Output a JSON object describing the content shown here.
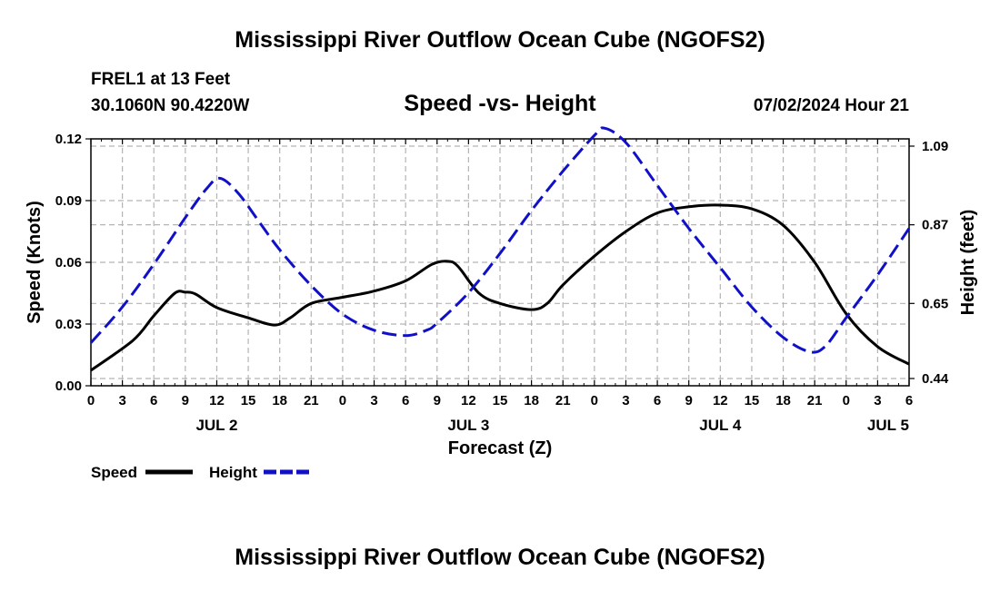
{
  "header": {
    "title": "Mississippi River Outflow Ocean Cube (NGOFS2)",
    "station": "FREL1 at 13 Feet",
    "coords": "30.1060N  90.4220W",
    "subtitle": "Speed -vs- Height",
    "timestamp": "07/02/2024 Hour 21"
  },
  "footer": {
    "title": "Mississippi River Outflow Ocean Cube (NGOFS2)"
  },
  "colors": {
    "speed": "#000000",
    "height": "#1010c8",
    "grid": "#b4b4b4"
  },
  "chart_data": {
    "type": "line",
    "xlabel": "Forecast (Z)",
    "ylabel": "Speed (Knots)",
    "y2label": "Height (feet)",
    "xlim": [
      0,
      78
    ],
    "ylim": [
      0,
      0.12
    ],
    "y2lim": [
      0.44,
      1.09
    ],
    "x_ticks": [
      0,
      3,
      6,
      9,
      12,
      15,
      18,
      21,
      24,
      27,
      30,
      33,
      36,
      39,
      42,
      45,
      48,
      51,
      54,
      57,
      60,
      63,
      66,
      69,
      72,
      75,
      78
    ],
    "x_tick_labels": [
      "0",
      "3",
      "6",
      "9",
      "12",
      "15",
      "18",
      "21",
      "0",
      "3",
      "6",
      "9",
      "12",
      "15",
      "18",
      "21",
      "0",
      "3",
      "6",
      "9",
      "12",
      "15",
      "18",
      "21",
      "0",
      "3",
      "6"
    ],
    "day_labels": [
      {
        "x": 12,
        "label": "JUL 2"
      },
      {
        "x": 36,
        "label": "JUL 3"
      },
      {
        "x": 60,
        "label": "JUL 4"
      },
      {
        "x": 76,
        "label": "JUL 5"
      }
    ],
    "y_ticks": [
      0,
      0.03,
      0.06,
      0.09,
      0.12
    ],
    "y_tick_labels": [
      "0.00",
      "0.03",
      "0.06",
      "0.09",
      "0.12"
    ],
    "y2_ticks": [
      0.44,
      0.65,
      0.87,
      1.09
    ],
    "y2_tick_labels": [
      "0.44",
      "0.65",
      "0.87",
      "1.09"
    ],
    "series": [
      {
        "name": "Speed",
        "axis": "left",
        "style": "solid",
        "x": [
          0,
          4,
          6,
          8,
          9,
          10,
          12,
          15,
          17.5,
          19,
          21,
          24,
          27,
          30,
          32.5,
          34,
          35,
          37,
          39,
          42,
          43.5,
          45,
          48,
          51,
          54,
          57,
          60,
          63,
          66,
          69,
          72,
          75,
          78
        ],
        "values": [
          0.0075,
          0.022,
          0.034,
          0.045,
          0.0455,
          0.0445,
          0.038,
          0.033,
          0.0295,
          0.033,
          0.04,
          0.043,
          0.046,
          0.051,
          0.059,
          0.0605,
          0.058,
          0.045,
          0.04,
          0.037,
          0.04,
          0.049,
          0.063,
          0.075,
          0.084,
          0.087,
          0.0878,
          0.086,
          0.078,
          0.06,
          0.035,
          0.019,
          0.0105
        ]
      },
      {
        "name": "Height",
        "axis": "right",
        "style": "dashed",
        "x": [
          0,
          3,
          6,
          9,
          11,
          12.3,
          14,
          16,
          18,
          21,
          24,
          27,
          30,
          32,
          33,
          36,
          39,
          42,
          45,
          48,
          49,
          51,
          54,
          57,
          60,
          63,
          66,
          68.5,
          70,
          72,
          75,
          78
        ],
        "values": [
          0.54,
          0.64,
          0.76,
          0.89,
          0.97,
          1.0,
          0.96,
          0.88,
          0.8,
          0.7,
          0.62,
          0.575,
          0.56,
          0.575,
          0.595,
          0.68,
          0.79,
          0.91,
          1.02,
          1.12,
          1.14,
          1.1,
          0.98,
          0.86,
          0.75,
          0.64,
          0.555,
          0.515,
          0.53,
          0.61,
          0.73,
          0.86
        ]
      }
    ]
  },
  "legend": {
    "position": "bottom-left",
    "items": [
      {
        "label": "Speed",
        "series": "Speed"
      },
      {
        "label": "Height",
        "series": "Height"
      }
    ]
  }
}
